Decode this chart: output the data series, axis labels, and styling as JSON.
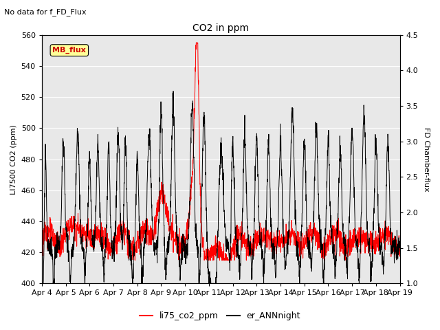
{
  "title": "CO2 in ppm",
  "top_left_text": "No data for f_FD_Flux",
  "ylabel_left": "LI7500 CO2 (ppm)",
  "ylabel_right": "FD Chamber-flux",
  "ylim_left": [
    400,
    560
  ],
  "ylim_right": [
    1.0,
    4.5
  ],
  "yticks_left": [
    400,
    420,
    440,
    460,
    480,
    500,
    520,
    540,
    560
  ],
  "yticks_right": [
    1.0,
    1.5,
    2.0,
    2.5,
    3.0,
    3.5,
    4.0,
    4.5
  ],
  "xtick_labels": [
    "Apr 4",
    "Apr 5",
    "Apr 6",
    "Apr 7",
    "Apr 8",
    "Apr 9",
    "Apr 10",
    "Apr 11",
    "Apr 12",
    "Apr 13",
    "Apr 14",
    "Apr 15",
    "Apr 16",
    "Apr 17",
    "Apr 18",
    "Apr 19"
  ],
  "background_color": "#ebebeb",
  "plot_bg_light": "#f5f5f5",
  "legend_labels": [
    "li75_co2_ppm",
    "er_ANNnight"
  ],
  "legend_colors": [
    "red",
    "black"
  ],
  "mb_flux_box_color": "#ffff99",
  "mb_flux_text_color": "#cc0000",
  "n_points": 2000
}
